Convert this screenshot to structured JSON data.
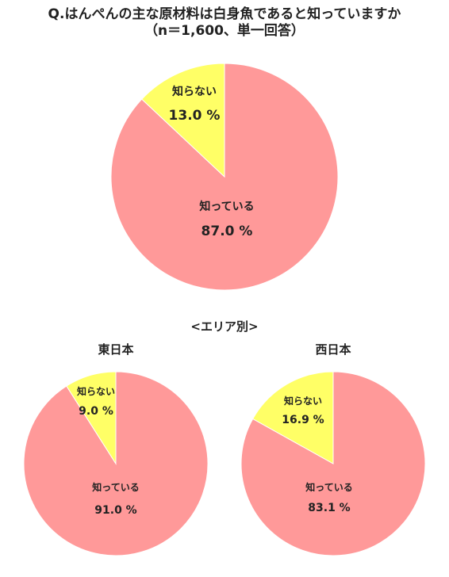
{
  "title": {
    "line1": "Q.はんぺんの主な原材料は白身魚であると知っていますか",
    "line2": "（n＝1,600、単一回答）"
  },
  "area_heading": "<エリア別>",
  "colors": {
    "know": "#ff9999",
    "dont_know": "#ffff66",
    "border": "#ffffff"
  },
  "chart_data": [
    {
      "type": "pie",
      "title": "",
      "slices": [
        {
          "label": "知っている",
          "value": 87.0,
          "display": "87.0 %",
          "color": "#ff9999"
        },
        {
          "label": "知らない",
          "value": 13.0,
          "display": "13.0 %",
          "color": "#ffff66"
        }
      ]
    },
    {
      "type": "pie",
      "title": "東日本",
      "slices": [
        {
          "label": "知っている",
          "value": 91.0,
          "display": "91.0 %",
          "color": "#ff9999"
        },
        {
          "label": "知らない",
          "value": 9.0,
          "display": "9.0 %",
          "color": "#ffff66"
        }
      ]
    },
    {
      "type": "pie",
      "title": "西日本",
      "slices": [
        {
          "label": "知っている",
          "value": 83.1,
          "display": "83.1 %",
          "color": "#ff9999"
        },
        {
          "label": "知らない",
          "value": 16.9,
          "display": "16.9 %",
          "color": "#ffff66"
        }
      ]
    }
  ]
}
